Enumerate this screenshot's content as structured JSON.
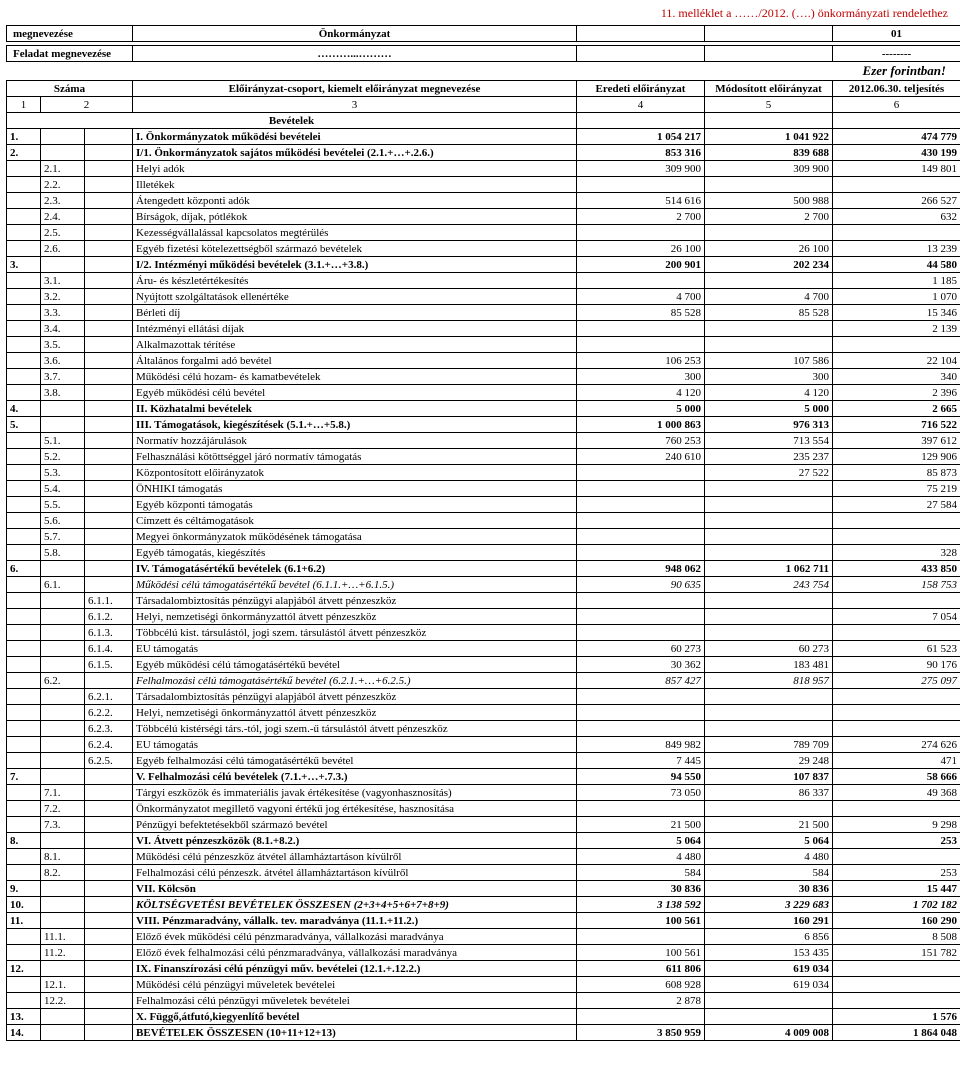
{
  "annex": "11. melléklet a ……/2012. (….) önkormányzati rendelethez",
  "header": {
    "megnevezes_label": "megnevezése",
    "onkormanyzat": "Önkormányzat",
    "code01": "01",
    "feladat_label": "Feladat megnevezése",
    "feladat_dots": "………...………",
    "feladat_dash": "--------",
    "ezer": "Ezer forintban!",
    "szama": "Száma",
    "col_desc": "Előirányzat-csoport, kiemelt előirányzat megnevezése",
    "col4": "Eredeti előirányzat",
    "col5": "Módosított előirányzat",
    "col6": "2012.06.30. teljesítés",
    "n1": "1",
    "n2": "2",
    "n3": "3",
    "n4": "4",
    "n5": "5",
    "n6": "6",
    "bevetelek": "Bevételek"
  },
  "rows": [
    {
      "a": "1.",
      "b": "",
      "c": "",
      "d": "I. Önkormányzatok működési bevételei",
      "v4": "1 054 217",
      "v5": "1 041 922",
      "v6": "474 779",
      "bold": true
    },
    {
      "a": "2.",
      "b": "",
      "c": "",
      "d": "I/1. Önkormányzatok sajátos működési bevételei (2.1.+…+.2.6.)",
      "v4": "853 316",
      "v5": "839 688",
      "v6": "430 199",
      "bold": true
    },
    {
      "a": "",
      "b": "2.1.",
      "c": "",
      "d": "Helyi adók",
      "v4": "309 900",
      "v5": "309 900",
      "v6": "149 801"
    },
    {
      "a": "",
      "b": "2.2.",
      "c": "",
      "d": "Illetékek",
      "v4": "",
      "v5": "",
      "v6": ""
    },
    {
      "a": "",
      "b": "2.3.",
      "c": "",
      "d": "Átengedett központi adók",
      "v4": "514 616",
      "v5": "500 988",
      "v6": "266 527"
    },
    {
      "a": "",
      "b": "2.4.",
      "c": "",
      "d": "Bírságok, díjak, pótlékok",
      "v4": "2 700",
      "v5": "2 700",
      "v6": "632"
    },
    {
      "a": "",
      "b": "2.5.",
      "c": "",
      "d": "Kezességvállalással kapcsolatos megtérülés",
      "v4": "",
      "v5": "",
      "v6": ""
    },
    {
      "a": "",
      "b": "2.6.",
      "c": "",
      "d": "Egyéb fizetési kötelezettségből származó bevételek",
      "v4": "26 100",
      "v5": "26 100",
      "v6": "13 239"
    },
    {
      "a": "3.",
      "b": "",
      "c": "",
      "d": "I/2. Intézményi működési bevételek (3.1.+…+3.8.)",
      "v4": "200 901",
      "v5": "202 234",
      "v6": "44 580",
      "bold": true
    },
    {
      "a": "",
      "b": "3.1.",
      "c": "",
      "d": "Áru- és készletértékesítés",
      "v4": "",
      "v5": "",
      "v6": "1 185"
    },
    {
      "a": "",
      "b": "3.2.",
      "c": "",
      "d": "Nyújtott szolgáltatások ellenértéke",
      "v4": "4 700",
      "v5": "4 700",
      "v6": "1 070"
    },
    {
      "a": "",
      "b": "3.3.",
      "c": "",
      "d": "Bérleti díj",
      "v4": "85 528",
      "v5": "85 528",
      "v6": "15 346"
    },
    {
      "a": "",
      "b": "3.4.",
      "c": "",
      "d": "Intézményi ellátási díjak",
      "v4": "",
      "v5": "",
      "v6": "2 139"
    },
    {
      "a": "",
      "b": "3.5.",
      "c": "",
      "d": "Alkalmazottak térítése",
      "v4": "",
      "v5": "",
      "v6": ""
    },
    {
      "a": "",
      "b": "3.6.",
      "c": "",
      "d": "Általános forgalmi adó bevétel",
      "v4": "106 253",
      "v5": "107 586",
      "v6": "22 104"
    },
    {
      "a": "",
      "b": "3.7.",
      "c": "",
      "d": "Működési célú hozam- és kamatbevételek",
      "v4": "300",
      "v5": "300",
      "v6": "340"
    },
    {
      "a": "",
      "b": "3.8.",
      "c": "",
      "d": "Egyéb működési célú bevétel",
      "v4": "4 120",
      "v5": "4 120",
      "v6": "2 396"
    },
    {
      "a": "4.",
      "b": "",
      "c": "",
      "d": "II. Közhatalmi bevételek",
      "v4": "5 000",
      "v5": "5 000",
      "v6": "2 665",
      "bold": true
    },
    {
      "a": "5.",
      "b": "",
      "c": "",
      "d": "III. Támogatások, kiegészítések (5.1.+…+5.8.)",
      "v4": "1 000 863",
      "v5": "976 313",
      "v6": "716 522",
      "bold": true
    },
    {
      "a": "",
      "b": "5.1.",
      "c": "",
      "d": "Normatív hozzájárulások",
      "v4": "760 253",
      "v5": "713 554",
      "v6": "397 612"
    },
    {
      "a": "",
      "b": "5.2.",
      "c": "",
      "d": "Felhasználási kötöttséggel járó normatív támogatás",
      "v4": "240 610",
      "v5": "235 237",
      "v6": "129 906"
    },
    {
      "a": "",
      "b": "5.3.",
      "c": "",
      "d": "Központosított előirányzatok",
      "v4": "",
      "v5": "27 522",
      "v6": "85 873"
    },
    {
      "a": "",
      "b": "5.4.",
      "c": "",
      "d": "ÖNHIKI támogatás",
      "v4": "",
      "v5": "",
      "v6": "75 219"
    },
    {
      "a": "",
      "b": "5.5.",
      "c": "",
      "d": "Egyéb központi támogatás",
      "v4": "",
      "v5": "",
      "v6": "27 584"
    },
    {
      "a": "",
      "b": "5.6.",
      "c": "",
      "d": "Címzett és céltámogatások",
      "v4": "",
      "v5": "",
      "v6": ""
    },
    {
      "a": "",
      "b": "5.7.",
      "c": "",
      "d": "Megyei önkormányzatok működésének támogatása",
      "v4": "",
      "v5": "",
      "v6": ""
    },
    {
      "a": "",
      "b": "5.8.",
      "c": "",
      "d": "Egyéb támogatás, kiegészítés",
      "v4": "",
      "v5": "",
      "v6": "328"
    },
    {
      "a": "6.",
      "b": "",
      "c": "",
      "d": "IV. Támogatásértékű bevételek (6.1+6.2)",
      "v4": "948 062",
      "v5": "1 062 711",
      "v6": "433 850",
      "bold": true
    },
    {
      "a": "",
      "b": "6.1.",
      "c": "",
      "d": "Működési célú támogatásértékű bevétel (6.1.1.+…+6.1.5.)",
      "v4": "90 635",
      "v5": "243 754",
      "v6": "158 753",
      "italic": true
    },
    {
      "a": "",
      "b": "",
      "c": "6.1.1.",
      "d": "Társadalombiztosítás pénzügyi alapjából átvett pénzeszköz",
      "v4": "",
      "v5": "",
      "v6": ""
    },
    {
      "a": "",
      "b": "",
      "c": "6.1.2.",
      "d": "Helyi, nemzetiségi önkormányzattól átvett pénzeszköz",
      "v4": "",
      "v5": "",
      "v6": "7 054"
    },
    {
      "a": "",
      "b": "",
      "c": "6.1.3.",
      "d": "Többcélú kist. társulástól, jogi szem. társulástól átvett pénzeszköz",
      "v4": "",
      "v5": "",
      "v6": ""
    },
    {
      "a": "",
      "b": "",
      "c": "6.1.4.",
      "d": "EU támogatás",
      "v4": "60 273",
      "v5": "60 273",
      "v6": "61 523"
    },
    {
      "a": "",
      "b": "",
      "c": "6.1.5.",
      "d": "Egyéb működési célú támogatásértékű bevétel",
      "v4": "30 362",
      "v5": "183 481",
      "v6": "90 176"
    },
    {
      "a": "",
      "b": "6.2.",
      "c": "",
      "d": "Felhalmozási célú támogatásértékű bevétel (6.2.1.+…+6.2.5.)",
      "v4": "857 427",
      "v5": "818 957",
      "v6": "275 097",
      "italic": true
    },
    {
      "a": "",
      "b": "",
      "c": "6.2.1.",
      "d": "Társadalombiztosítás pénzügyi alapjából átvett pénzeszköz",
      "v4": "",
      "v5": "",
      "v6": ""
    },
    {
      "a": "",
      "b": "",
      "c": "6.2.2.",
      "d": "Helyi, nemzetiségi önkormányzattól átvett pénzeszköz",
      "v4": "",
      "v5": "",
      "v6": ""
    },
    {
      "a": "",
      "b": "",
      "c": "6.2.3.",
      "d": "Többcélú kistérségi társ.-tól, jogi szem.-ű társulástól átvett pénzeszköz",
      "v4": "",
      "v5": "",
      "v6": ""
    },
    {
      "a": "",
      "b": "",
      "c": "6.2.4.",
      "d": "EU támogatás",
      "v4": "849 982",
      "v5": "789 709",
      "v6": "274 626"
    },
    {
      "a": "",
      "b": "",
      "c": "6.2.5.",
      "d": "Egyéb felhalmozási célú támogatásértékű bevétel",
      "v4": "7 445",
      "v5": "29 248",
      "v6": "471"
    },
    {
      "a": "7.",
      "b": "",
      "c": "",
      "d": "V. Felhalmozási célú bevételek (7.1.+…+.7.3.)",
      "v4": "94 550",
      "v5": "107 837",
      "v6": "58 666",
      "bold": true
    },
    {
      "a": "",
      "b": "7.1.",
      "c": "",
      "d": "Tárgyi eszközök és immateriális javak értékesítése (vagyonhasznosítás)",
      "v4": "73 050",
      "v5": "86 337",
      "v6": "49 368"
    },
    {
      "a": "",
      "b": "7.2.",
      "c": "",
      "d": "Önkormányzatot megillető vagyoni értékű jog értékesítése, hasznosítása",
      "v4": "",
      "v5": "",
      "v6": ""
    },
    {
      "a": "",
      "b": "7.3.",
      "c": "",
      "d": "Pénzügyi befektetésekből származó bevétel",
      "v4": "21 500",
      "v5": "21 500",
      "v6": "9 298"
    },
    {
      "a": "8.",
      "b": "",
      "c": "",
      "d": "VI. Átvett pénzeszközök (8.1.+8.2.)",
      "v4": "5 064",
      "v5": "5 064",
      "v6": "253",
      "bold": true
    },
    {
      "a": "",
      "b": "8.1.",
      "c": "",
      "d": "Működési célú pénzeszköz átvétel államháztartáson kívülről",
      "v4": "4 480",
      "v5": "4 480",
      "v6": ""
    },
    {
      "a": "",
      "b": "8.2.",
      "c": "",
      "d": "Felhalmozási célú pénzeszk. átvétel államháztartáson kívülről",
      "v4": "584",
      "v5": "584",
      "v6": "253"
    },
    {
      "a": "9.",
      "b": "",
      "c": "",
      "d": "VII. Kölcsön",
      "v4": "30 836",
      "v5": "30 836",
      "v6": "15 447",
      "bold": true
    },
    {
      "a": "10.",
      "b": "",
      "c": "",
      "d": "KÖLTSÉGVETÉSI BEVÉTELEK ÖSSZESEN (2+3+4+5+6+7+8+9)",
      "v4": "3 138 592",
      "v5": "3 229 683",
      "v6": "1 702 182",
      "bold": true,
      "italic": true
    },
    {
      "a": "11.",
      "b": "",
      "c": "",
      "d": "VIII. Pénzmaradvány, vállalk. tev. maradványa (11.1.+11.2.)",
      "v4": "100 561",
      "v5": "160 291",
      "v6": "160 290",
      "bold": true
    },
    {
      "a": "",
      "b": "11.1.",
      "c": "",
      "d": "Előző évek működési célú pénzmaradványa, vállalkozási maradványa",
      "v4": "",
      "v5": "6 856",
      "v6": "8 508"
    },
    {
      "a": "",
      "b": "11.2.",
      "c": "",
      "d": "Előző évek felhalmozási célú pénzmaradványa, vállalkozási maradványa",
      "v4": "100 561",
      "v5": "153 435",
      "v6": "151 782"
    },
    {
      "a": "12.",
      "b": "",
      "c": "",
      "d": "IX. Finanszírozási célú pénzügyi műv. bevételei (12.1.+.12.2.)",
      "v4": "611 806",
      "v5": "619 034",
      "v6": "",
      "bold": true
    },
    {
      "a": "",
      "b": "12.1.",
      "c": "",
      "d": "Működési célú pénzügyi műveletek bevételei",
      "v4": "608 928",
      "v5": "619 034",
      "v6": ""
    },
    {
      "a": "",
      "b": "12.2.",
      "c": "",
      "d": "Felhalmozási célú pénzügyi műveletek bevételei",
      "v4": "2 878",
      "v5": "",
      "v6": ""
    },
    {
      "a": "13.",
      "b": "",
      "c": "",
      "d": "X. Függő,átfutó,kiegyenlítő bevétel",
      "v4": "",
      "v5": "",
      "v6": "1 576",
      "bold": true
    },
    {
      "a": "14.",
      "b": "",
      "c": "",
      "d": "BEVÉTELEK ÖSSZESEN (10+11+12+13)",
      "v4": "3 850 959",
      "v5": "4 009 008",
      "v6": "1 864 048",
      "bold": true
    }
  ]
}
